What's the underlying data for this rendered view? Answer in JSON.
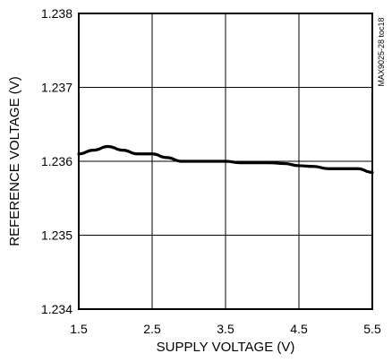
{
  "chart_data": {
    "type": "line",
    "xlabel": "SUPPLY VOLTAGE (V)",
    "ylabel": "REFERENCE VOLTAGE (V)",
    "annotation": "MAX9025-28 toc18",
    "xlim": [
      1.5,
      5.5
    ],
    "ylim": [
      1.234,
      1.238
    ],
    "xticks": [
      1.5,
      2.5,
      3.5,
      4.5,
      5.5
    ],
    "yticks": [
      1.234,
      1.235,
      1.236,
      1.237,
      1.238
    ],
    "xtick_labels": [
      "1.5",
      "2.5",
      "3.5",
      "4.5",
      "5.5"
    ],
    "ytick_labels": [
      "1.234",
      "1.235",
      "1.236",
      "1.237",
      "1.238"
    ],
    "grid": true,
    "series": [
      {
        "x": [
          1.5,
          1.7,
          1.9,
          2.1,
          2.3,
          2.5,
          2.7,
          2.9,
          3.1,
          3.3,
          3.5,
          3.7,
          3.9,
          4.1,
          4.3,
          4.5,
          4.7,
          4.9,
          5.1,
          5.3,
          5.5
        ],
        "values": [
          1.2361,
          1.23615,
          1.2362,
          1.23615,
          1.2361,
          1.2361,
          1.23605,
          1.236,
          1.236,
          1.236,
          1.236,
          1.23598,
          1.23598,
          1.23598,
          1.23597,
          1.23594,
          1.23593,
          1.2359,
          1.2359,
          1.2359,
          1.23585
        ]
      }
    ]
  }
}
